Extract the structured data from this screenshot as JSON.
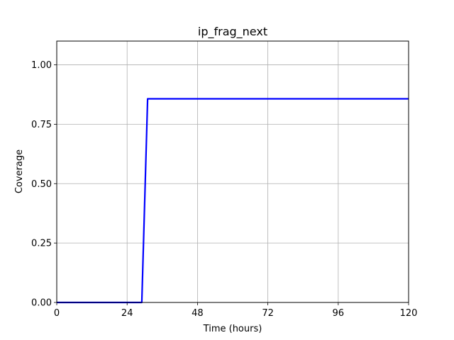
{
  "chart_data": {
    "type": "line",
    "title": "ip_frag_next",
    "xlabel": "Time (hours)",
    "ylabel": "Coverage",
    "xlim": [
      0,
      120
    ],
    "ylim": [
      0,
      1.1
    ],
    "xticks": [
      0,
      24,
      48,
      72,
      96,
      120
    ],
    "xtick_labels": [
      "0",
      "24",
      "48",
      "72",
      "96",
      "120"
    ],
    "yticks": [
      0,
      0.25,
      0.5,
      0.75,
      1.0
    ],
    "ytick_labels": [
      "0.00",
      "0.25",
      "0.50",
      "0.75",
      "1.00"
    ],
    "grid": true,
    "series": [
      {
        "color": "#0000ff",
        "x": [
          0,
          29,
          31,
          120
        ],
        "y": [
          0,
          0,
          0.857,
          0.857
        ]
      }
    ]
  }
}
